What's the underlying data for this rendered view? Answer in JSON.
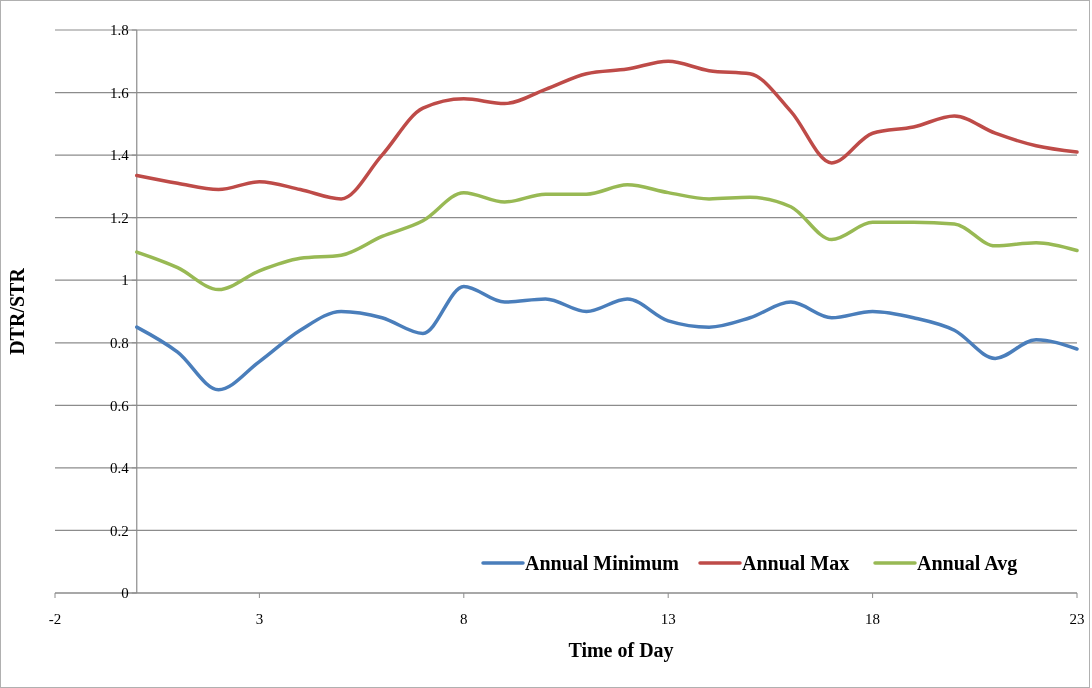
{
  "chart_data": {
    "type": "line",
    "xlabel": "Time of Day",
    "ylabel": "DTR/STR",
    "x": [
      0,
      1,
      2,
      3,
      4,
      5,
      6,
      7,
      8,
      9,
      10,
      11,
      12,
      13,
      14,
      15,
      16,
      17,
      18,
      19,
      20,
      21,
      22,
      23
    ],
    "series": [
      {
        "name": "Annual Minimum",
        "color": "#4a7ebb",
        "values": [
          0.85,
          0.77,
          0.65,
          0.74,
          0.84,
          0.9,
          0.88,
          0.83,
          0.98,
          0.93,
          0.94,
          0.9,
          0.94,
          0.87,
          0.85,
          0.88,
          0.93,
          0.88,
          0.9,
          0.88,
          0.84,
          0.75,
          0.81,
          0.78
        ]
      },
      {
        "name": "Annual Max",
        "color": "#be4b48",
        "values": [
          1.335,
          1.31,
          1.29,
          1.315,
          1.29,
          1.26,
          1.4,
          1.55,
          1.58,
          1.565,
          1.61,
          1.66,
          1.675,
          1.7,
          1.67,
          1.66,
          1.54,
          1.375,
          1.47,
          1.49,
          1.525,
          1.47,
          1.43,
          1.41
        ]
      },
      {
        "name": "Annual Avg",
        "color": "#98b954",
        "values": [
          1.09,
          1.04,
          0.97,
          1.03,
          1.07,
          1.08,
          1.14,
          1.19,
          1.28,
          1.25,
          1.275,
          1.275,
          1.305,
          1.28,
          1.26,
          1.265,
          1.235,
          1.13,
          1.185,
          1.185,
          1.18,
          1.11,
          1.12,
          1.095
        ]
      }
    ],
    "xlim": [
      -2,
      23
    ],
    "xticks": [
      -2,
      3,
      8,
      13,
      18,
      23
    ],
    "ylim": [
      0,
      1.8
    ],
    "yticks": [
      0,
      0.2,
      0.4,
      0.6,
      0.8,
      1,
      1.2,
      1.4,
      1.6,
      1.8
    ],
    "grid": "y",
    "legend": "bottom right",
    "line_style": "solid",
    "marker": "none"
  }
}
